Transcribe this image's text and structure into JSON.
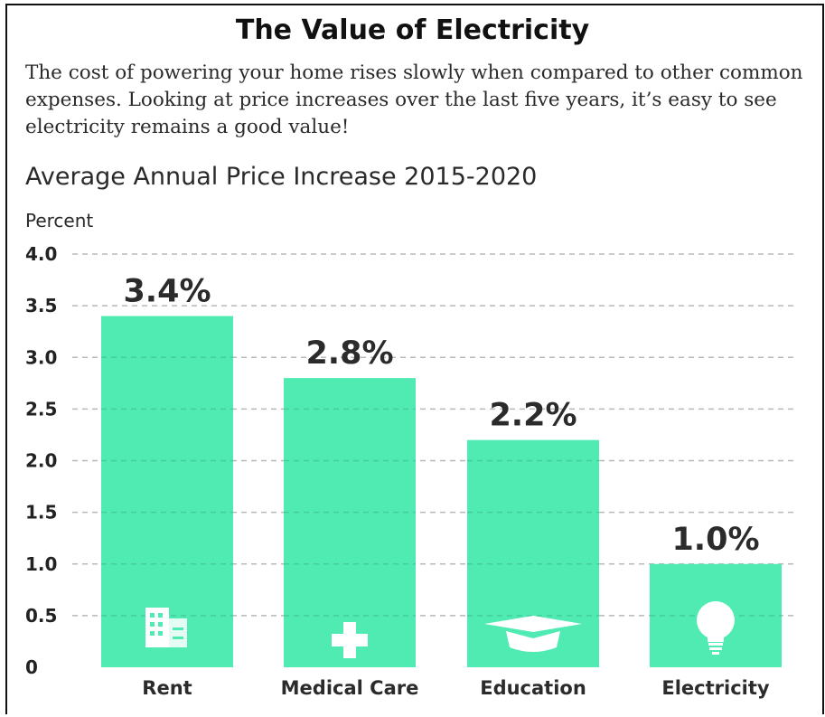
{
  "title": "The Value of Electricity",
  "intro": "The cost of powering your home rises slowly when compared to other common expenses. Looking at price increases over the last five years, it’s easy to see electricity remains a good value!",
  "colors": {
    "bar": "#50eab3",
    "grid": "#b8b8b8",
    "text": "#2b2b2b",
    "icon": "#ffffff"
  },
  "chart_data": {
    "type": "bar",
    "title": "Average Annual Price Increase 2015-2020",
    "ylabel": "Percent",
    "xlabel": "",
    "categories": [
      "Rent",
      "Medical Care",
      "Education",
      "Electricity"
    ],
    "values": [
      3.4,
      2.8,
      2.2,
      1.0
    ],
    "data_labels": [
      "3.4%",
      "2.8%",
      "2.2%",
      "1.0%"
    ],
    "icons": [
      "building-icon",
      "plus-icon",
      "graduation-cap-icon",
      "lightbulb-icon"
    ],
    "ylim": [
      0,
      4.0
    ],
    "yticks": [
      0,
      0.5,
      1.0,
      1.5,
      2.0,
      2.5,
      3.0,
      3.5,
      4.0
    ],
    "ytick_labels": [
      "0",
      "0.5",
      "1.0",
      "1.5",
      "2.0",
      "2.5",
      "3.0",
      "3.5",
      "4.0"
    ],
    "grid": true
  }
}
